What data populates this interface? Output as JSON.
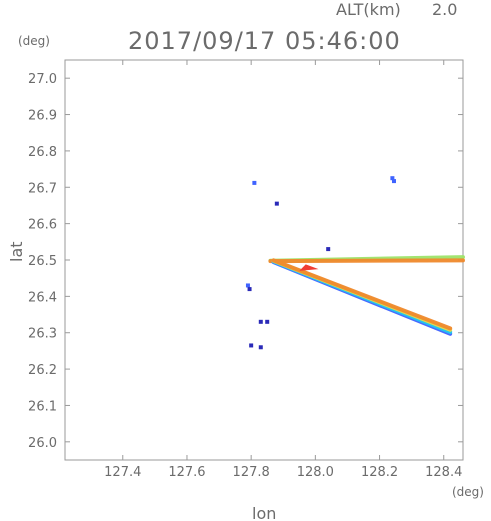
{
  "chart_data": {
    "type": "scatter",
    "title": "2017/09/17 05:46:00",
    "altitude_label": "ALT(km)",
    "altitude_value": "2.0",
    "xlabel": "lon",
    "ylabel": "lat",
    "x_unit": "(deg)",
    "y_unit": "(deg)",
    "xlim": [
      127.22,
      128.46
    ],
    "ylim": [
      25.95,
      27.05
    ],
    "x_ticks": [
      "127.4",
      "127.6",
      "127.8",
      "128.0",
      "128.2",
      "128.4"
    ],
    "y_ticks": [
      "26.0",
      "26.1",
      "26.2",
      "26.3",
      "26.4",
      "26.5",
      "26.6",
      "26.7",
      "26.8",
      "26.9",
      "27.0"
    ],
    "grid": false,
    "colors": {
      "blue": "#3f63ff",
      "cyan": "#21c8f0",
      "green": "#9ee36a",
      "yellow": "#e8d94a",
      "orange": "#f08a2d",
      "red": "#f03c33",
      "dark": "#2a2ab8"
    },
    "features": [
      {
        "kind": "band",
        "x": [
          127.86,
          128.46
        ],
        "y": [
          26.498,
          26.508
        ],
        "color": "green"
      },
      {
        "kind": "band",
        "x": [
          127.86,
          128.46
        ],
        "y": [
          26.497,
          26.499
        ],
        "color": "orange"
      },
      {
        "kind": "band",
        "x": [
          127.87,
          128.42
        ],
        "y": [
          26.494,
          26.297
        ],
        "color": "blue"
      },
      {
        "kind": "band",
        "x": [
          127.87,
          128.42
        ],
        "y": [
          26.496,
          26.302
        ],
        "color": "cyan"
      },
      {
        "kind": "band",
        "x": [
          127.87,
          128.42
        ],
        "y": [
          26.498,
          26.308
        ],
        "color": "yellow"
      },
      {
        "kind": "band",
        "x": [
          127.87,
          128.42
        ],
        "y": [
          26.499,
          26.312
        ],
        "color": "orange"
      },
      {
        "kind": "wedge",
        "points": [
          [
            127.95,
            26.47
          ],
          [
            128.01,
            26.475
          ],
          [
            127.97,
            26.488
          ]
        ],
        "color": "red"
      },
      {
        "kind": "point",
        "x": 127.81,
        "y": 26.712,
        "color": "blue"
      },
      {
        "kind": "point",
        "x": 127.88,
        "y": 26.655,
        "color": "dark"
      },
      {
        "kind": "point",
        "x": 128.24,
        "y": 26.725,
        "color": "blue"
      },
      {
        "kind": "point",
        "x": 128.245,
        "y": 26.717,
        "color": "blue"
      },
      {
        "kind": "point",
        "x": 127.79,
        "y": 26.43,
        "color": "blue"
      },
      {
        "kind": "point",
        "x": 127.795,
        "y": 26.42,
        "color": "dark"
      },
      {
        "kind": "point",
        "x": 127.83,
        "y": 26.33,
        "color": "dark"
      },
      {
        "kind": "point",
        "x": 127.85,
        "y": 26.33,
        "color": "dark"
      },
      {
        "kind": "point",
        "x": 127.8,
        "y": 26.265,
        "color": "dark"
      },
      {
        "kind": "point",
        "x": 127.83,
        "y": 26.26,
        "color": "dark"
      },
      {
        "kind": "point",
        "x": 128.04,
        "y": 26.53,
        "color": "dark"
      }
    ]
  }
}
